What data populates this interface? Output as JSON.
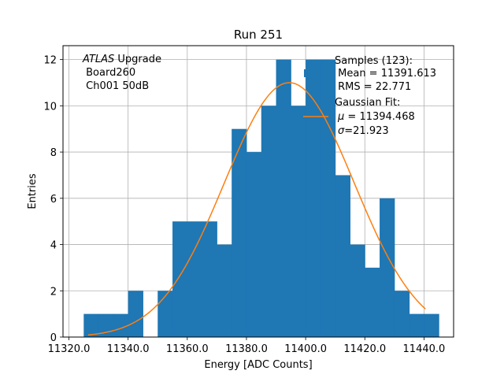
{
  "chart_data": {
    "type": "histogram",
    "title": "Run 251",
    "xlabel": "Energy [ADC Counts]",
    "ylabel": "Entries",
    "xlim": [
      11318,
      11450
    ],
    "ylim": [
      0,
      12.6
    ],
    "grid": true,
    "xticks": [
      11320,
      11340,
      11360,
      11380,
      11400,
      11420,
      11440
    ],
    "xtick_labels": [
      "11320.0",
      "11340.0",
      "11360.0",
      "11380.0",
      "11400.0",
      "11420.0",
      "11440.0"
    ],
    "yticks": [
      0,
      2,
      4,
      6,
      8,
      10,
      12
    ],
    "ytick_labels": [
      "0",
      "2",
      "4",
      "6",
      "8",
      "10",
      "12"
    ],
    "bin_width": 5,
    "bins": [
      {
        "x0": 11325,
        "x1": 11330,
        "count": 1
      },
      {
        "x0": 11330,
        "x1": 11335,
        "count": 1
      },
      {
        "x0": 11335,
        "x1": 11340,
        "count": 1
      },
      {
        "x0": 11340,
        "x1": 11345,
        "count": 2
      },
      {
        "x0": 11350,
        "x1": 11355,
        "count": 2
      },
      {
        "x0": 11355,
        "x1": 11360,
        "count": 5
      },
      {
        "x0": 11360,
        "x1": 11365,
        "count": 5
      },
      {
        "x0": 11365,
        "x1": 11370,
        "count": 5
      },
      {
        "x0": 11370,
        "x1": 11375,
        "count": 4
      },
      {
        "x0": 11375,
        "x1": 11380,
        "count": 9
      },
      {
        "x0": 11380,
        "x1": 11385,
        "count": 8
      },
      {
        "x0": 11385,
        "x1": 11390,
        "count": 10
      },
      {
        "x0": 11390,
        "x1": 11395,
        "count": 12
      },
      {
        "x0": 11395,
        "x1": 11400,
        "count": 10
      },
      {
        "x0": 11400,
        "x1": 11405,
        "count": 12
      },
      {
        "x0": 11405,
        "x1": 11410,
        "count": 12
      },
      {
        "x0": 11410,
        "x1": 11415,
        "count": 7
      },
      {
        "x0": 11415,
        "x1": 11420,
        "count": 4
      },
      {
        "x0": 11420,
        "x1": 11425,
        "count": 3
      },
      {
        "x0": 11425,
        "x1": 11430,
        "count": 6
      },
      {
        "x0": 11430,
        "x1": 11435,
        "count": 2
      },
      {
        "x0": 11435,
        "x1": 11440,
        "count": 1
      },
      {
        "x0": 11440,
        "x1": 11445,
        "count": 1
      }
    ],
    "fit": {
      "function": "gaussian",
      "mu": 11394.468,
      "sigma": 21.923,
      "amplitude": 11.0,
      "x_range": [
        11326.5,
        11440.5
      ]
    },
    "colors": {
      "bars": "#1f77b4",
      "fit": "#ff7f0e",
      "grid": "#b0b0b0"
    },
    "legend": {
      "placement": "top-right",
      "samples_line1": "Samples (123):",
      "samples_line2": " Mean = 11391.613",
      "samples_line3": " RMS = 22.771",
      "fit_line1": "Gaussian Fit:",
      "fit_line2_sym": "μ",
      "fit_line2_rest": " = 11394.468",
      "fit_line3_sym": "σ",
      "fit_line3_rest": "=21.923"
    },
    "annotation": {
      "line1_italic": "ATLAS",
      "line1_rest": " Upgrade",
      "line2": " Board260",
      "line3": " Ch001 50dB"
    }
  }
}
